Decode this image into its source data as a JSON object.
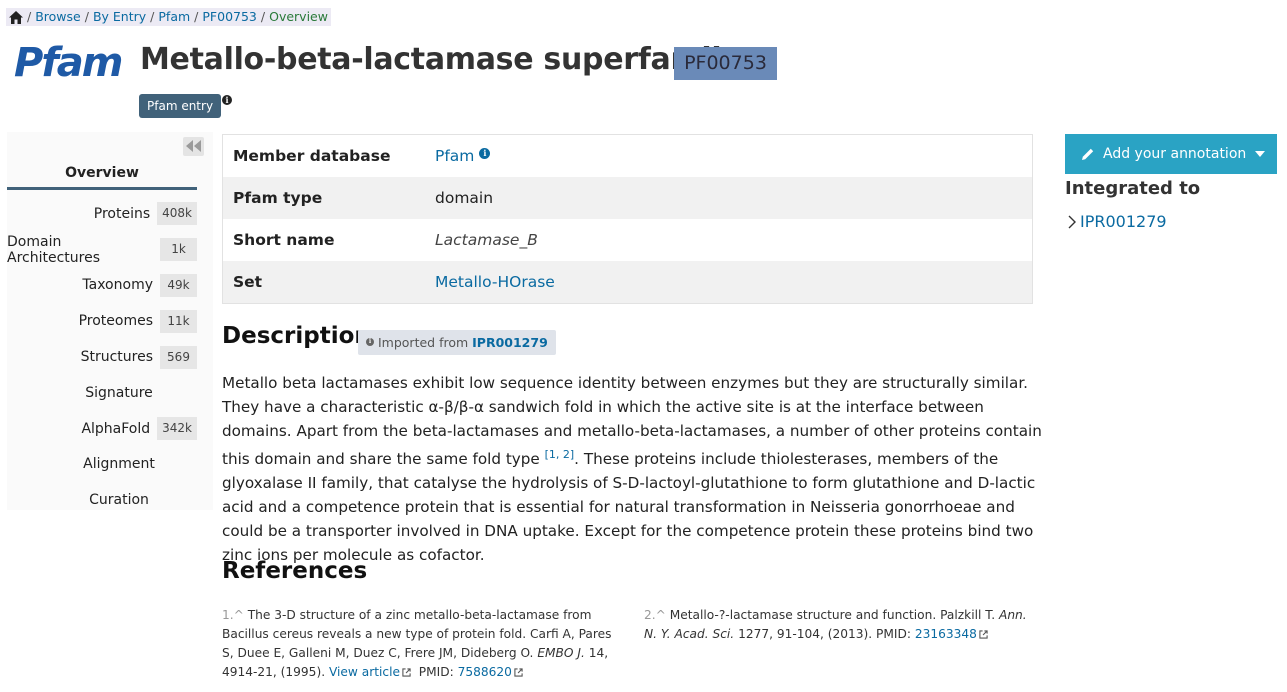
{
  "breadcrumb": {
    "items": [
      "Browse",
      "By Entry",
      "Pfam",
      "PF00753"
    ],
    "current": "Overview",
    "separator": "/"
  },
  "header": {
    "logo_text": "Pfam",
    "title": "Metallo-beta-lactamase superfamily",
    "accession": "PF00753",
    "entry_type_badge": "Pfam entry"
  },
  "sidebar": {
    "overview_label": "Overview",
    "items": [
      {
        "label": "Proteins",
        "count": "408k"
      },
      {
        "label": "Domain Architectures",
        "count": "1k"
      },
      {
        "label": "Taxonomy",
        "count": "49k"
      },
      {
        "label": "Proteomes",
        "count": "11k"
      },
      {
        "label": "Structures",
        "count": "569"
      },
      {
        "label": "Signature",
        "count": ""
      },
      {
        "label": "AlphaFold",
        "count": "342k"
      },
      {
        "label": "Alignment",
        "count": ""
      },
      {
        "label": "Curation",
        "count": ""
      }
    ]
  },
  "info_table": {
    "member_db_label": "Member database",
    "member_db_value": "Pfam",
    "type_label": "Pfam type",
    "type_value": "domain",
    "short_name_label": "Short name",
    "short_name_value": "Lactamase_B",
    "set_label": "Set",
    "set_value": "Metallo-HOrase"
  },
  "description": {
    "title": "Description",
    "imported_prefix": "Imported from",
    "imported_acc": "IPR001279",
    "text_part1": "Metallo beta lactamases exhibit low sequence identity between enzymes but they are structurally similar. They have a characteristic α-β/β-α sandwich fold in which the active site is at the interface between domains. Apart from the beta-lactamases and metallo-beta-lactamases, a number of other proteins contain this domain and share the same fold type ",
    "citation": "[1, 2]",
    "text_part2": ". These proteins include thiolesterases, members of the glyoxalase II family, that catalyse the hydrolysis of S-D-lactoyl-glutathione to form glutathione and D-lactic acid and a competence protein that is essential for natural transformation in Neisseria gonorrhoeae and could be a transporter involved in DNA uptake. Except for the competence protein these proteins bind two zinc ions per molecule as cofactor."
  },
  "references": {
    "title": "References",
    "items": [
      {
        "num": "1.^",
        "text": "The 3-D structure of a zinc metallo-beta-lactamase from Bacillus cereus reveals a new type of protein fold. Carfi A, Pares S, Duee E, Galleni M, Duez C, Frere JM, Dideberg O.",
        "journal": "EMBO J.",
        "details": "14, 4914-21, (1995).",
        "view_article": "View article",
        "pmid_label": "PMID:",
        "pmid": "7588620"
      },
      {
        "num": "2.^",
        "text": "Metallo-?-lactamase structure and function. Palzkill T.",
        "journal": "Ann. N. Y. Acad. Sci.",
        "details": "1277, 91-104, (2013).",
        "pmid_label": "PMID:",
        "pmid": "23163348"
      }
    ]
  },
  "right_panel": {
    "annotation_button": "Add your annotation",
    "integrated_title": "Integrated to",
    "integrated_acc": "IPR001279"
  },
  "colors": {
    "accent_blue": "#0a6aa1",
    "badge_dark": "#41627a",
    "accession_badge": "#6a8ab8",
    "annotation_button": "#2aa3c4"
  },
  "icons": [
    "home-icon",
    "info-icon",
    "double-chevron-left-icon",
    "pencil-icon",
    "caret-down-icon",
    "chevron-right-icon",
    "external-link-icon"
  ]
}
